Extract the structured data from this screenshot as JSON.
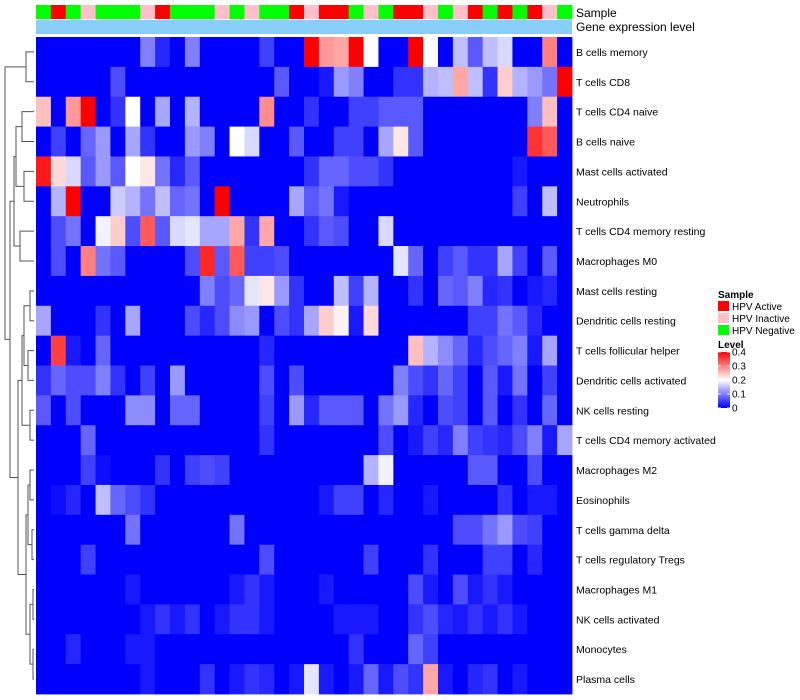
{
  "chart_data": {
    "type": "heatmap",
    "title": "",
    "annotation_rows": [
      "Sample",
      "Gene expression level"
    ],
    "row_labels": [
      "B cells memory",
      "T cells CD8",
      "T cells CD4 naive",
      "B cells naive",
      "Mast cells activated",
      "Neutrophils",
      "T cells CD4 memory resting",
      "Macrophages M0",
      "Mast cells resting",
      "Dendritic cells resting",
      "T cells follicular helper",
      "Dendritic cells activated",
      "NK cells resting",
      "T cells CD4 memory activated",
      "Macrophages M2",
      "Eosinophils",
      "T cells gamma delta",
      "T cells regulatory  Tregs",
      "Macrophages M1",
      "NK cells activated",
      "Monocytes",
      "Plasma cells"
    ],
    "sample_groups": [
      "Negative",
      "Active",
      "Negative",
      "Inactive",
      "Negative",
      "Negative",
      "Negative",
      "Inactive",
      "Active",
      "Negative",
      "Negative",
      "Negative",
      "Inactive",
      "Negative",
      "Inactive",
      "Negative",
      "Negative",
      "Active",
      "Inactive",
      "Active",
      "Active",
      "Negative",
      "Inactive",
      "Negative",
      "Active",
      "Active",
      "Inactive",
      "Negative",
      "Inactive",
      "Active",
      "Negative",
      "Active",
      "Negative",
      "Active",
      "Inactive",
      "Negative"
    ],
    "legend_sample": {
      "title": "Sample",
      "items": [
        {
          "key": "Active",
          "label": "HPV Active",
          "color": "#ff0000"
        },
        {
          "key": "Inactive",
          "label": "HPV Inactive",
          "color": "#ffc0cb"
        },
        {
          "key": "Negative",
          "label": "HPV Negative",
          "color": "#00ff00"
        }
      ]
    },
    "expression_bar_color": "#87cefa",
    "legend_level": {
      "title": "Level",
      "min": 0,
      "max": 0.4,
      "ticks": [
        0.4,
        0.3,
        0.2,
        0.1,
        0
      ],
      "colors": [
        "#0000ff",
        "#ffffff",
        "#ff0000"
      ]
    },
    "values": [
      [
        0,
        0,
        0,
        0,
        0,
        0,
        0,
        0.1,
        0.03,
        0,
        0.1,
        0,
        0,
        0,
        0,
        0.05,
        0,
        0,
        0.4,
        0.28,
        0.27,
        0.4,
        0.2,
        0,
        0,
        0.4,
        0.2,
        0,
        0.15,
        0.07,
        0.15,
        0.17,
        0,
        0,
        0.3,
        0
      ],
      [
        0,
        0,
        0,
        0,
        0,
        0.06,
        0,
        0,
        0,
        0,
        0,
        0,
        0,
        0,
        0,
        0,
        0.07,
        0,
        0,
        0.02,
        0.12,
        0.1,
        0,
        0,
        0.04,
        0.04,
        0.14,
        0.15,
        0.27,
        0.15,
        0.04,
        0.24,
        0.14,
        0.12,
        0.09,
        0.4
      ],
      [
        0.25,
        0,
        0.28,
        0.4,
        0,
        0.04,
        0.2,
        0,
        0.13,
        0,
        0.14,
        0,
        0,
        0,
        0,
        0.29,
        0,
        0,
        0.04,
        0,
        0,
        0.05,
        0.05,
        0.07,
        0.07,
        0.07,
        0,
        0,
        0,
        0,
        0,
        0,
        0,
        0.1,
        0.25,
        0
      ],
      [
        0,
        0.05,
        0,
        0.08,
        0.12,
        0,
        0.13,
        0.04,
        0,
        0,
        0.12,
        0.1,
        0,
        0.2,
        0.17,
        0,
        0,
        0.07,
        0,
        0,
        0.05,
        0.05,
        0,
        0.13,
        0.22,
        0.07,
        0,
        0,
        0,
        0,
        0,
        0,
        0,
        0.36,
        0.33,
        0
      ],
      [
        0.38,
        0.23,
        0.17,
        0.07,
        0.12,
        0.07,
        0.2,
        0.22,
        0.09,
        0.03,
        0.07,
        0,
        0,
        0,
        0,
        0,
        0,
        0,
        0.04,
        0.08,
        0.08,
        0.06,
        0.06,
        0.04,
        0,
        0,
        0,
        0,
        0,
        0,
        0,
        0,
        0.02,
        0,
        0,
        0
      ],
      [
        0,
        0.14,
        0.4,
        0,
        0,
        0.16,
        0.14,
        0.09,
        0.15,
        0.08,
        0.09,
        0,
        0.4,
        0,
        0,
        0,
        0,
        0.13,
        0.07,
        0.09,
        0.02,
        0,
        0,
        0,
        0,
        0,
        0,
        0,
        0,
        0,
        0,
        0,
        0.05,
        0,
        0.15,
        0
      ],
      [
        0,
        0.06,
        0.09,
        0,
        0.19,
        0.24,
        0.06,
        0.33,
        0.07,
        0.17,
        0.18,
        0.13,
        0.13,
        0.27,
        0.04,
        0.27,
        0,
        0,
        0.04,
        0.07,
        0.06,
        0,
        0,
        0.17,
        0,
        0,
        0,
        0,
        0,
        0,
        0,
        0,
        0,
        0,
        0,
        0
      ],
      [
        0,
        0.06,
        0,
        0.3,
        0.09,
        0.07,
        0,
        0,
        0,
        0,
        0.06,
        0.37,
        0.07,
        0.33,
        0.05,
        0.05,
        0.06,
        0,
        0,
        0,
        0,
        0,
        0,
        0,
        0.18,
        0.08,
        0,
        0.05,
        0.07,
        0.04,
        0.04,
        0.13,
        0.05,
        0,
        0.07,
        0
      ],
      [
        0,
        0,
        0,
        0,
        0,
        0,
        0,
        0,
        0,
        0,
        0,
        0.1,
        0.06,
        0.08,
        0.18,
        0.22,
        0.12,
        0.04,
        0,
        0,
        0.15,
        0.05,
        0.14,
        0,
        0,
        0.04,
        0,
        0.08,
        0.07,
        0.1,
        0.03,
        0.04,
        0,
        0.02,
        0.03,
        0
      ],
      [
        0.13,
        0,
        0,
        0,
        0.04,
        0,
        0.13,
        0,
        0,
        0,
        0.06,
        0.03,
        0.06,
        0.11,
        0.12,
        0,
        0.06,
        0.04,
        0.13,
        0.24,
        0.21,
        0.02,
        0.23,
        0,
        0,
        0,
        0,
        0,
        0,
        0.05,
        0.05,
        0.09,
        0.07,
        0.03,
        0,
        0
      ],
      [
        0,
        0.35,
        0.02,
        0,
        0.08,
        0,
        0,
        0,
        0,
        0,
        0,
        0,
        0,
        0,
        0,
        0.03,
        0,
        0,
        0,
        0,
        0,
        0,
        0,
        0,
        0,
        0.25,
        0.14,
        0.11,
        0.08,
        0.03,
        0.06,
        0.08,
        0.1,
        0.02,
        0.13,
        0
      ],
      [
        0.04,
        0.08,
        0.06,
        0.06,
        0.1,
        0.04,
        0,
        0.05,
        0,
        0.12,
        0,
        0,
        0,
        0,
        0,
        0.06,
        0,
        0.06,
        0,
        0,
        0,
        0,
        0,
        0,
        0.1,
        0.06,
        0.04,
        0.08,
        0.05,
        0,
        0.07,
        0.02,
        0.09,
        0,
        0.05,
        0
      ],
      [
        0.07,
        0,
        0.06,
        0,
        0,
        0,
        0.11,
        0.11,
        0,
        0.08,
        0.08,
        0,
        0,
        0,
        0,
        0.05,
        0,
        0.12,
        0.03,
        0.07,
        0.07,
        0.07,
        0,
        0.09,
        0.12,
        0.03,
        0,
        0.06,
        0.05,
        0,
        0.07,
        0,
        0.04,
        0,
        0.08,
        0
      ],
      [
        0,
        0,
        0,
        0.08,
        0,
        0,
        0,
        0,
        0,
        0,
        0,
        0,
        0,
        0,
        0,
        0.04,
        0,
        0,
        0,
        0,
        0,
        0,
        0,
        0.06,
        0,
        0.02,
        0.05,
        0.03,
        0.1,
        0.05,
        0.04,
        0.03,
        0.06,
        0.1,
        0.02,
        0.13
      ],
      [
        0,
        0,
        0,
        0.05,
        0.01,
        0,
        0,
        0,
        0.04,
        0,
        0.05,
        0.06,
        0.05,
        0,
        0,
        0,
        0,
        0,
        0,
        0,
        0,
        0,
        0.14,
        0.19,
        0,
        0,
        0,
        0,
        0,
        0.07,
        0.07,
        0,
        0,
        0.06,
        0,
        0
      ],
      [
        0,
        0.01,
        0.03,
        0,
        0.15,
        0.08,
        0.06,
        0.04,
        0,
        0,
        0,
        0,
        0,
        0,
        0,
        0,
        0,
        0,
        0,
        0.02,
        0.05,
        0.05,
        0,
        0.03,
        0,
        0,
        0.02,
        0,
        0,
        0,
        0,
        0.04,
        0,
        0.02,
        0.02,
        0
      ],
      [
        0,
        0,
        0,
        0,
        0,
        0,
        0.09,
        0,
        0,
        0,
        0,
        0,
        0,
        0.09,
        0,
        0,
        0,
        0,
        0,
        0,
        0,
        0,
        0,
        0,
        0,
        0,
        0,
        0,
        0.06,
        0.06,
        0.09,
        0.12,
        0.06,
        0.05,
        0,
        0
      ],
      [
        0,
        0,
        0,
        0.05,
        0,
        0,
        0,
        0,
        0,
        0,
        0,
        0,
        0,
        0,
        0,
        0.06,
        0,
        0,
        0,
        0,
        0,
        0,
        0.05,
        0,
        0,
        0,
        0.04,
        0,
        0,
        0,
        0.05,
        0.05,
        0,
        0.03,
        0,
        0
      ],
      [
        0,
        0,
        0,
        0,
        0,
        0,
        0.02,
        0,
        0,
        0,
        0,
        0,
        0,
        0.02,
        0.04,
        0.02,
        0,
        0,
        0,
        0.02,
        0,
        0,
        0,
        0,
        0,
        0.06,
        0.02,
        0,
        0.06,
        0.02,
        0.04,
        0.02,
        0,
        0,
        0,
        0
      ],
      [
        0,
        0,
        0,
        0,
        0,
        0,
        0,
        0.02,
        0.04,
        0.02,
        0.04,
        0,
        0.02,
        0.04,
        0.04,
        0.02,
        0,
        0,
        0,
        0,
        0.02,
        0.02,
        0.02,
        0,
        0,
        0.04,
        0.06,
        0.03,
        0.02,
        0.04,
        0.02,
        0.04,
        0.02,
        0,
        0,
        0
      ],
      [
        0,
        0,
        0.03,
        0,
        0,
        0,
        0.02,
        0.02,
        0,
        0,
        0,
        0,
        0,
        0,
        0,
        0,
        0,
        0,
        0,
        0,
        0,
        0.04,
        0,
        0,
        0,
        0.08,
        0.05,
        0,
        0,
        0,
        0,
        0,
        0,
        0,
        0,
        0
      ],
      [
        0,
        0,
        0,
        0,
        0,
        0,
        0,
        0.02,
        0,
        0,
        0,
        0.04,
        0,
        0.02,
        0.04,
        0.03,
        0,
        0.02,
        0.18,
        0.02,
        0,
        0.02,
        0.08,
        0.02,
        0.06,
        0.04,
        0.27,
        0.02,
        0,
        0.03,
        0.04,
        0,
        0.02,
        0,
        0,
        0
      ]
    ]
  }
}
